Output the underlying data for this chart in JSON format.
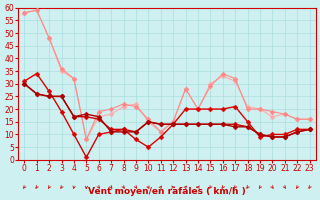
{
  "title": "",
  "xlabel": "Vent moyen/en rafales ( km/h )",
  "ylabel": "",
  "bg_color": "#cff0f0",
  "grid_color": "#aadddd",
  "xlim": [
    -0.5,
    23.5
  ],
  "ylim": [
    0,
    60
  ],
  "yticks": [
    0,
    5,
    10,
    15,
    20,
    25,
    30,
    35,
    40,
    45,
    50,
    55,
    60
  ],
  "xticks": [
    0,
    1,
    2,
    3,
    4,
    5,
    6,
    7,
    8,
    9,
    10,
    11,
    12,
    13,
    14,
    15,
    16,
    17,
    18,
    19,
    20,
    21,
    22,
    23
  ],
  "series": [
    {
      "x": [
        0,
        1,
        2,
        3,
        4,
        5,
        6,
        7,
        8,
        9,
        10,
        11,
        12,
        13,
        14,
        15,
        16,
        17,
        18,
        19,
        20,
        21,
        22,
        23
      ],
      "y": [
        58,
        59,
        48,
        35,
        32,
        8,
        17,
        18,
        21,
        22,
        15,
        11,
        15,
        28,
        20,
        30,
        33,
        31,
        21,
        20,
        17,
        18,
        16,
        16
      ],
      "color": "#ffaaaa",
      "marker": "D",
      "linewidth": 0.8,
      "markersize": 2.5
    },
    {
      "x": [
        0,
        1,
        2,
        3,
        4,
        5,
        6,
        7,
        8,
        9,
        10,
        11,
        12,
        13,
        14,
        15,
        16,
        17,
        18,
        19,
        20,
        21,
        22,
        23
      ],
      "y": [
        58,
        59,
        48,
        36,
        32,
        8,
        19,
        20,
        22,
        21,
        16,
        11,
        15,
        28,
        20,
        29,
        34,
        32,
        20,
        20,
        19,
        18,
        16,
        16
      ],
      "color": "#ff8888",
      "marker": "D",
      "linewidth": 0.8,
      "markersize": 2.5
    },
    {
      "x": [
        0,
        1,
        2,
        3,
        4,
        5,
        6,
        7,
        8,
        9,
        10,
        11,
        12,
        13,
        14,
        15,
        16,
        17,
        18,
        19,
        20,
        21,
        22,
        23
      ],
      "y": [
        31,
        34,
        27,
        19,
        10,
        1,
        10,
        11,
        12,
        8,
        5,
        9,
        14,
        20,
        20,
        20,
        20,
        21,
        15,
        9,
        10,
        10,
        12,
        12
      ],
      "color": "#dd0000",
      "marker": "D",
      "linewidth": 1.0,
      "markersize": 2.5
    },
    {
      "x": [
        0,
        1,
        2,
        3,
        4,
        5,
        6,
        7,
        8,
        9,
        10,
        11,
        12,
        13,
        14,
        15,
        16,
        17,
        18,
        19,
        20,
        21,
        22,
        23
      ],
      "y": [
        30,
        26,
        25,
        25,
        17,
        17,
        16,
        12,
        12,
        11,
        15,
        14,
        14,
        14,
        14,
        14,
        14,
        14,
        13,
        10,
        9,
        9,
        11,
        12
      ],
      "color": "#cc0000",
      "marker": "D",
      "linewidth": 1.0,
      "markersize": 2.5
    },
    {
      "x": [
        0,
        1,
        2,
        3,
        4,
        5,
        6,
        7,
        8,
        9,
        10,
        11,
        12,
        13,
        14,
        15,
        16,
        17,
        18,
        19,
        20,
        21,
        22,
        23
      ],
      "y": [
        30,
        26,
        25,
        25,
        17,
        18,
        17,
        11,
        11,
        11,
        15,
        14,
        14,
        14,
        14,
        14,
        14,
        13,
        13,
        10,
        9,
        9,
        11,
        12
      ],
      "color": "#aa0000",
      "marker": "D",
      "linewidth": 1.0,
      "markersize": 2.5
    }
  ],
  "arrow_color": "#cc2222",
  "axis_label_color": "#cc0000",
  "axis_label_fontsize": 6.5,
  "tick_fontsize": 5.5,
  "tick_color": "#cc0000",
  "arrow_angles": [
    225,
    225,
    225,
    225,
    200,
    180,
    135,
    135,
    135,
    135,
    150,
    45,
    90,
    45,
    270,
    225,
    225,
    225,
    225,
    225,
    135,
    135,
    225,
    225
  ]
}
